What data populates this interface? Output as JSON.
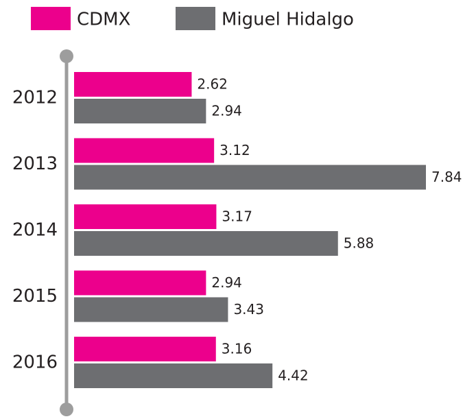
{
  "chart_data": {
    "type": "bar",
    "orientation": "horizontal",
    "categories": [
      "2012",
      "2013",
      "2014",
      "2015",
      "2016"
    ],
    "series": [
      {
        "name": "CDMX",
        "color": "#ec008c",
        "values": [
          2.62,
          3.12,
          3.17,
          2.94,
          3.16
        ]
      },
      {
        "name": "Miguel Hidalgo",
        "color": "#6d6e71",
        "values": [
          2.94,
          7.84,
          5.88,
          3.43,
          4.42
        ]
      }
    ]
  }
}
